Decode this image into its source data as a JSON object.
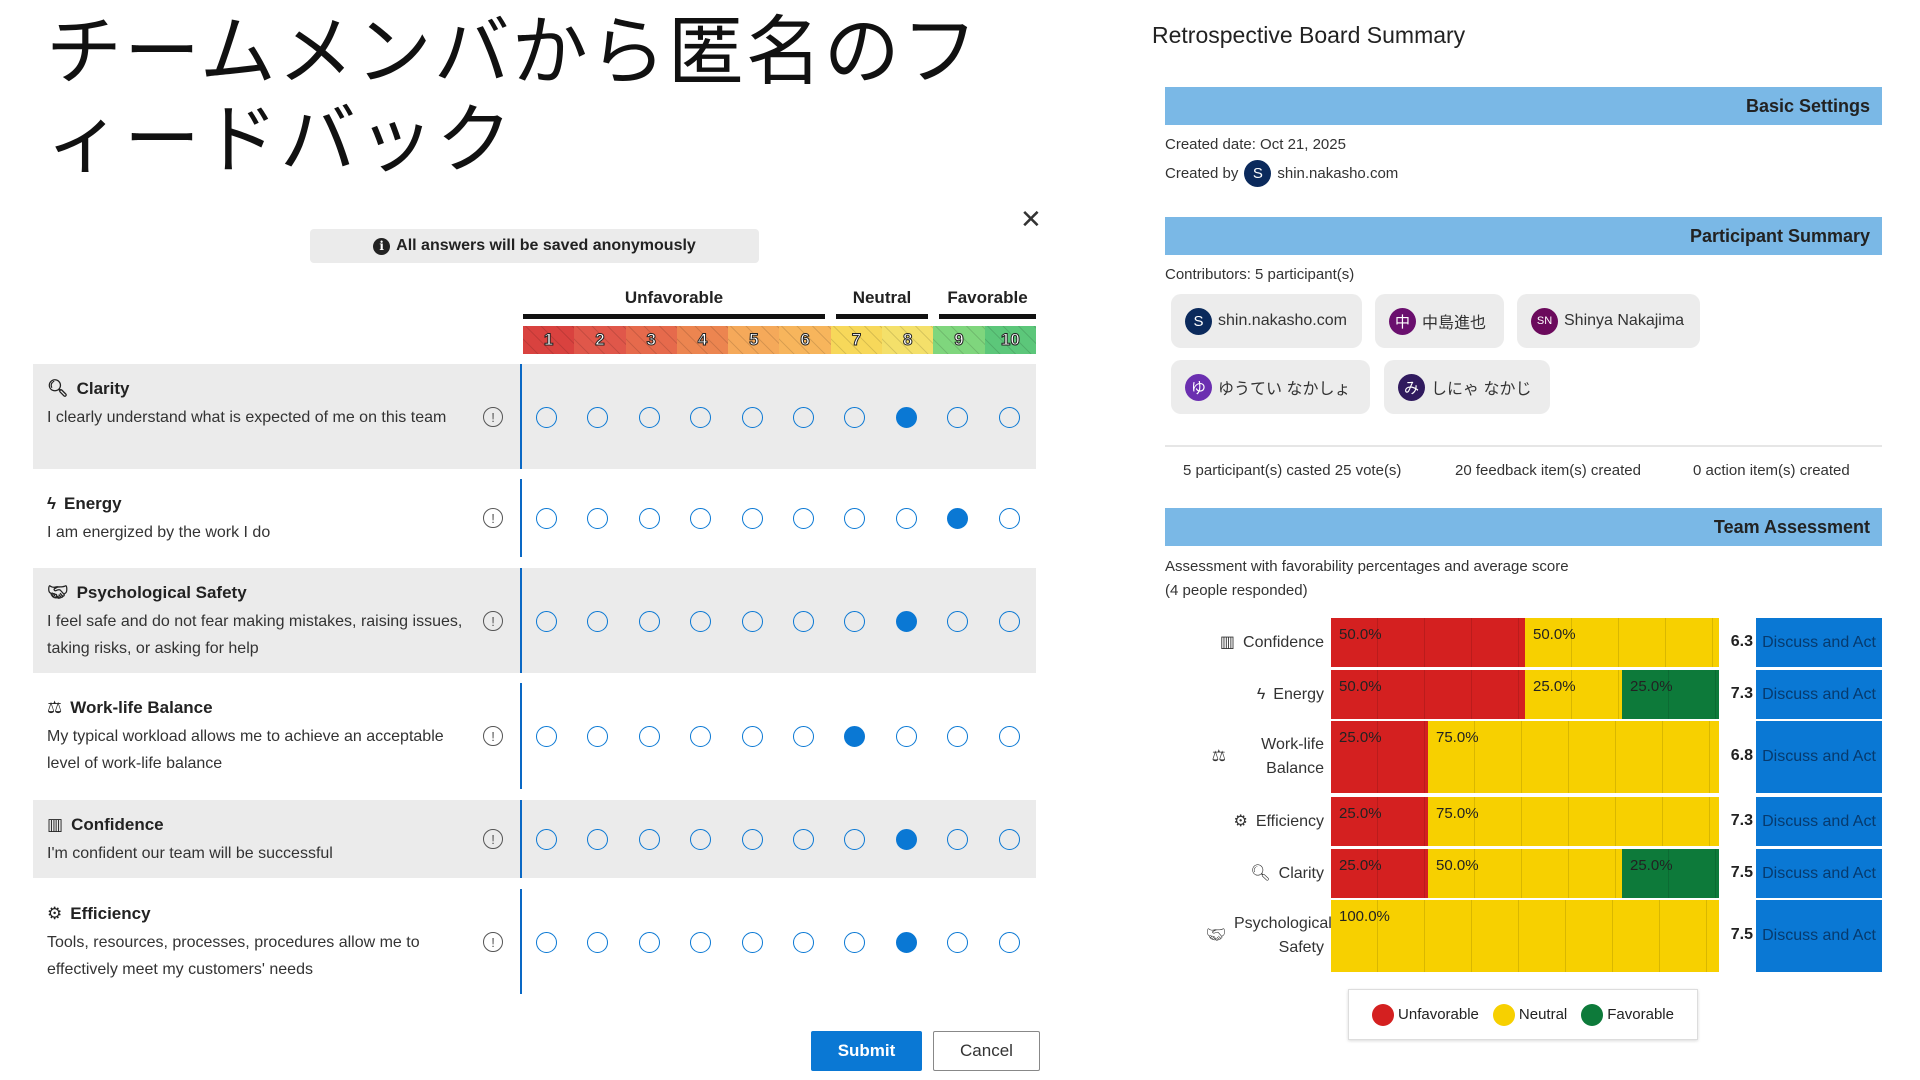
{
  "title": "チームメンバから匿名のフィードバック",
  "form": {
    "banner": "All answers will be saved anonymously",
    "close_icon": "close-icon",
    "groups": [
      {
        "label": "Unfavorable"
      },
      {
        "label": "Neutral"
      },
      {
        "label": "Favorable"
      }
    ],
    "scale": [
      "1",
      "2",
      "3",
      "4",
      "5",
      "6",
      "7",
      "8",
      "9",
      "10"
    ],
    "scale_colors": [
      "#d9423f",
      "#e0574a",
      "#e66a4c",
      "#ec8550",
      "#f5a95a",
      "#f7b55c",
      "#f7d85a",
      "#f4e06a",
      "#7fd67d",
      "#5cc77a"
    ],
    "questions": [
      {
        "icon": "search-icon",
        "glyph": "🔍︎",
        "title": "Clarity",
        "desc": "I clearly understand what is expected of me on this team",
        "selected": 8
      },
      {
        "icon": "lightning-icon",
        "glyph": "ϟ",
        "title": "Energy",
        "desc": "I am energized by the work I do",
        "selected": 9
      },
      {
        "icon": "handshake-icon",
        "glyph": "🤝︎",
        "title": "Psychological Safety",
        "desc": "I feel safe and do not fear making mistakes, raising issues, taking risks, or asking for help",
        "selected": 8
      },
      {
        "icon": "balance-scale-icon",
        "glyph": "⚖",
        "title": "Work-life Balance",
        "desc": "My typical workload allows me to achieve an acceptable level of work-life balance",
        "selected": 7
      },
      {
        "icon": "chart-square-icon",
        "glyph": "▥",
        "title": "Confidence",
        "desc": "I'm confident our team will be successful",
        "selected": 8
      },
      {
        "icon": "gears-icon",
        "glyph": "⚙",
        "title": "Efficiency",
        "desc": "Tools, resources, processes, procedures allow me to effectively meet my customers' needs",
        "selected": 8
      }
    ],
    "submit": "Submit",
    "cancel": "Cancel"
  },
  "summary": {
    "title": "Retrospective Board Summary",
    "basic_settings": "Basic Settings",
    "created_date": "Created date: Oct 21, 2025",
    "created_by_label": "Created by",
    "creator": {
      "initial": "S",
      "name": "shin.nakasho.com",
      "color": "#0b2a5c"
    },
    "participant_summary": "Participant Summary",
    "contributors": "Contributors: 5 participant(s)",
    "participants": [
      {
        "initial": "S",
        "name": "shin.nakasho.com",
        "color": "#0b2a5c"
      },
      {
        "initial": "中",
        "name": "中島進也",
        "color": "#6a0f6e"
      },
      {
        "initial": "SN",
        "name": "Shinya Nakajima",
        "color": "#6b0a5c"
      },
      {
        "initial": "ゆ",
        "name": "ゆうてい なかしょ",
        "color": "#6b2fb0"
      },
      {
        "initial": "み",
        "name": "しにゃ なかじ",
        "color": "#301a5e"
      }
    ],
    "stats": [
      "5 participant(s) casted 25 vote(s)",
      "20 feedback item(s) created",
      "0 action item(s) created"
    ],
    "team_assessment": "Team Assessment",
    "assessment_desc": "Assessment with favorability percentages and average score",
    "responded": "(4 people responded)",
    "action_label": "Discuss and Act"
  },
  "chart_data": {
    "type": "bar",
    "stacked": true,
    "orientation": "horizontal",
    "categories": [
      "Confidence",
      "Energy",
      "Work-life Balance",
      "Efficiency",
      "Clarity",
      "Psychological Safety"
    ],
    "category_icons": [
      "chart-square-icon",
      "lightning-icon",
      "balance-scale-icon",
      "gears-icon",
      "search-icon",
      "handshake-icon"
    ],
    "series": [
      {
        "name": "Unfavorable",
        "color": "#d42020",
        "values": [
          50,
          50,
          25,
          25,
          25,
          0
        ]
      },
      {
        "name": "Neutral",
        "color": "#f7d000",
        "values": [
          50,
          25,
          75,
          75,
          50,
          100
        ]
      },
      {
        "name": "Favorable",
        "color": "#0d7a3a",
        "values": [
          0,
          25,
          0,
          0,
          25,
          0
        ]
      }
    ],
    "average_scores": [
      "6.3",
      "7.3",
      "6.8",
      "7.3",
      "7.5",
      "7.5"
    ],
    "legend": "bottom"
  }
}
